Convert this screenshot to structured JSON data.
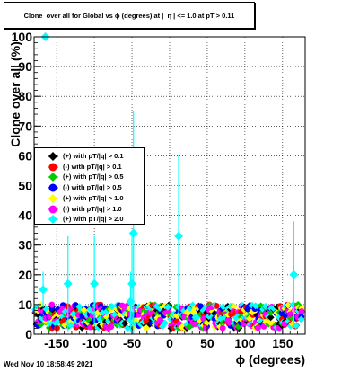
{
  "title": "Clone  over all for Global vs ϕ (degrees) at |  η | <= 1.0 at pT > 0.11",
  "timestamp": "Wed Nov 10 18:58:49 2021",
  "chart_data": {
    "type": "scatter",
    "xlabel": "ϕ (degrees)",
    "ylabel": "Clone  over all (%)",
    "xlim": [
      -180,
      180
    ],
    "ylim": [
      0,
      100
    ],
    "xticks": [
      -150,
      -100,
      -50,
      0,
      50,
      100,
      150
    ],
    "yticks": [
      0,
      10,
      20,
      30,
      40,
      50,
      60,
      70,
      80,
      90,
      100
    ],
    "grid": true,
    "legend_position": "middle-left",
    "series": [
      {
        "name": "(+) with pT/|q| > 0.1",
        "color": "#000000",
        "marker": "diamond"
      },
      {
        "name": "(-) with pT/|q| > 0.1",
        "color": "#ff0000",
        "marker": "circle"
      },
      {
        "name": "(+) with pT/|q| > 0.5",
        "color": "#00cc00",
        "marker": "diamond"
      },
      {
        "name": "(-) with pT/|q| > 0.5",
        "color": "#0000ff",
        "marker": "circle"
      },
      {
        "name": "(+) with pT/|q| > 1.0",
        "color": "#ffff00",
        "marker": "diamond"
      },
      {
        "name": "(-) with pT/|q| > 1.0",
        "color": "#ff00ff",
        "marker": "circle"
      },
      {
        "name": "(+) with pT/|q| > 2.0",
        "color": "#00ffff",
        "marker": "diamond"
      }
    ],
    "highlighted_points": [
      {
        "series": 6,
        "x": -165,
        "y": 100,
        "err": 0
      },
      {
        "series": 6,
        "x": -168,
        "y": 15,
        "err": 6
      },
      {
        "series": 6,
        "x": -135,
        "y": 17,
        "err": 16
      },
      {
        "series": 6,
        "x": -100,
        "y": 17,
        "err": 16
      },
      {
        "series": 6,
        "x": -50,
        "y": 17,
        "err": 17
      },
      {
        "series": 6,
        "x": -48,
        "y": 34,
        "err": 41
      },
      {
        "series": 6,
        "x": -52,
        "y": 11,
        "err": 10
      },
      {
        "series": 6,
        "x": 12,
        "y": 33,
        "err": 27
      },
      {
        "series": 6,
        "x": 165,
        "y": 20,
        "err": 18
      }
    ],
    "noise_band": {
      "y_min": 2,
      "y_max": 10
    }
  }
}
